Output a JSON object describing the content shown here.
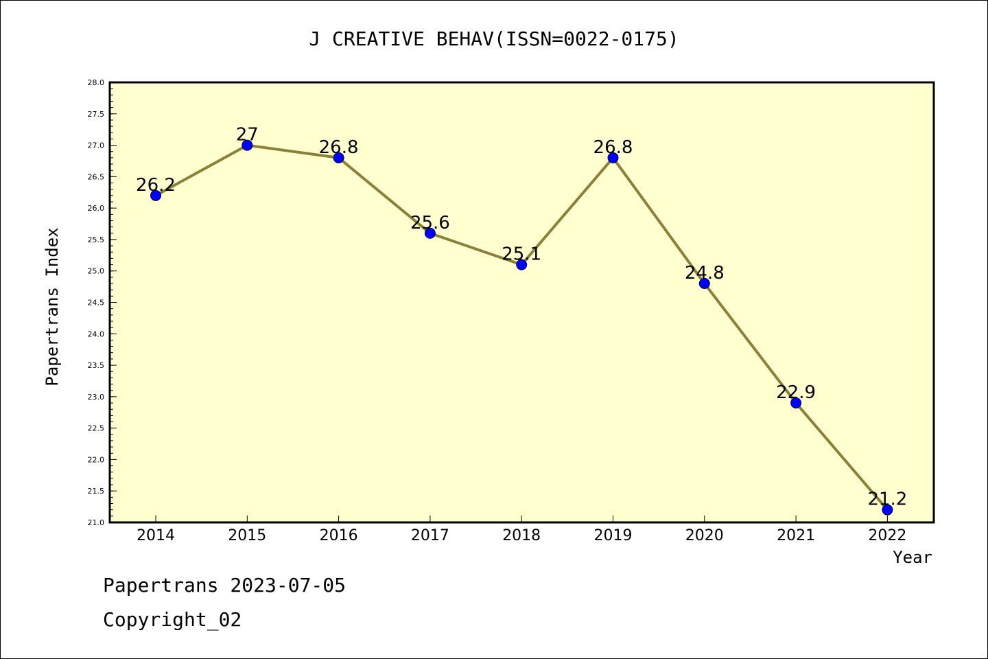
{
  "chart_data": {
    "type": "line",
    "title": "J CREATIVE BEHAV(ISSN=0022-0175)",
    "xlabel": "Year",
    "ylabel": "Papertrans Index",
    "x": [
      "2014",
      "2015",
      "2016",
      "2017",
      "2018",
      "2019",
      "2020",
      "2021",
      "2022"
    ],
    "series": [
      {
        "values": [
          26.2,
          27.0,
          26.8,
          25.6,
          25.1,
          26.8,
          24.8,
          22.9,
          21.2
        ],
        "data_labels": [
          "26.2",
          "27",
          "26.8",
          "25.6",
          "25.1",
          "26.8",
          "24.8",
          "22.9",
          "21.2"
        ]
      }
    ],
    "ylim": [
      21.0,
      28.0
    ],
    "y_ticks": [
      "21.0",
      "21.5",
      "22.0",
      "22.5",
      "23.0",
      "23.5",
      "24.0",
      "24.5",
      "25.0",
      "25.5",
      "26.0",
      "26.5",
      "27.0",
      "27.5",
      "28.0"
    ],
    "grid": false,
    "colors": {
      "plot_background": "#ffffd0",
      "line": "#8b8038",
      "marker": "#0000ff"
    }
  },
  "footer": {
    "line1": "Papertrans 2023-07-05",
    "line2": "Copyright_02"
  }
}
